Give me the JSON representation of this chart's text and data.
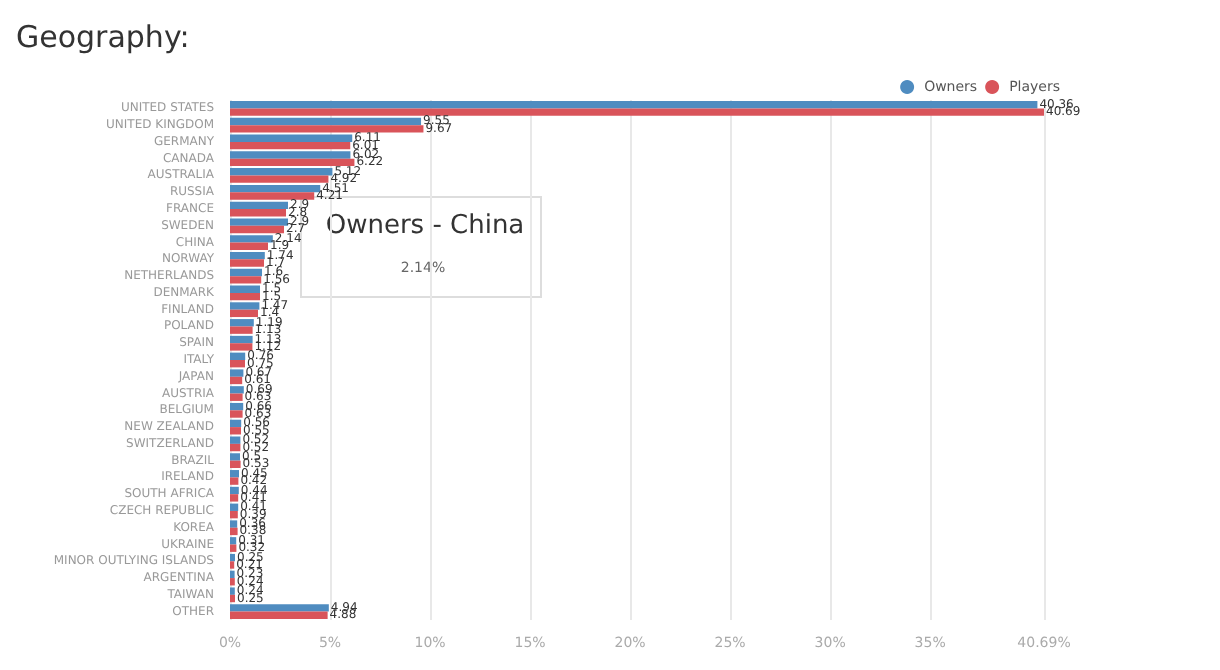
{
  "chart_data": {
    "type": "bar",
    "orientation": "horizontal",
    "title": "Geography:",
    "categories": [
      "UNITED STATES",
      "UNITED KINGDOM",
      "GERMANY",
      "CANADA",
      "AUSTRALIA",
      "RUSSIA",
      "FRANCE",
      "SWEDEN",
      "CHINA",
      "NORWAY",
      "NETHERLANDS",
      "DENMARK",
      "FINLAND",
      "POLAND",
      "SPAIN",
      "ITALY",
      "JAPAN",
      "AUSTRIA",
      "BELGIUM",
      "NEW ZEALAND",
      "SWITZERLAND",
      "BRAZIL",
      "IRELAND",
      "SOUTH AFRICA",
      "CZECH REPUBLIC",
      "KOREA",
      "UKRAINE",
      "MINOR OUTLYING ISLANDS",
      "ARGENTINA",
      "TAIWAN",
      "OTHER"
    ],
    "series": [
      {
        "name": "Owners",
        "color": "#4f8cc0",
        "values": [
          40.36,
          9.55,
          6.11,
          6.02,
          5.12,
          4.51,
          2.9,
          2.9,
          2.14,
          1.74,
          1.6,
          1.5,
          1.47,
          1.19,
          1.13,
          0.76,
          0.67,
          0.69,
          0.66,
          0.56,
          0.52,
          0.5,
          0.45,
          0.44,
          0.41,
          0.36,
          0.31,
          0.25,
          0.23,
          0.24,
          4.94
        ]
      },
      {
        "name": "Players",
        "color": "#d9545a",
        "values": [
          40.69,
          9.67,
          6.01,
          6.22,
          4.92,
          4.21,
          2.8,
          2.7,
          1.9,
          1.7,
          1.56,
          1.5,
          1.4,
          1.13,
          1.12,
          0.75,
          0.61,
          0.63,
          0.63,
          0.55,
          0.52,
          0.53,
          0.42,
          0.41,
          0.39,
          0.38,
          0.32,
          0.21,
          0.24,
          0.25,
          4.88
        ]
      }
    ],
    "xlim": [
      0,
      40.69
    ],
    "xticks": [
      {
        "value": 0,
        "label": "0%"
      },
      {
        "value": 5,
        "label": "5%"
      },
      {
        "value": 10,
        "label": "10%"
      },
      {
        "value": 15,
        "label": "15%"
      },
      {
        "value": 20,
        "label": "20%"
      },
      {
        "value": 25,
        "label": "25%"
      },
      {
        "value": 30,
        "label": "30%"
      },
      {
        "value": 35,
        "label": "35%"
      },
      {
        "value": 40.69,
        "label": "40.69%"
      }
    ],
    "grid": "x",
    "legend": "top right",
    "data_labels": true,
    "annotations": [
      "Owners - China",
      "2.14%"
    ]
  }
}
